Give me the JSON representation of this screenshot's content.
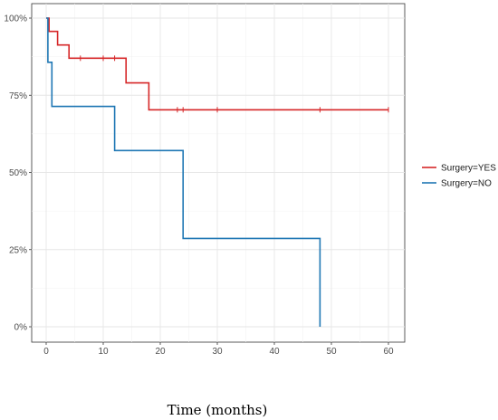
{
  "chart_data": {
    "type": "line",
    "subtype": "kaplan-meier step curves",
    "xlabel": "Time (months)",
    "ylabel": "",
    "title": "",
    "xlim": [
      -2,
      63
    ],
    "ylim": [
      0,
      1
    ],
    "x_ticks": [
      0,
      10,
      20,
      30,
      40,
      50,
      60
    ],
    "x_tick_labels": [
      "0",
      "10",
      "20",
      "30",
      "40",
      "50",
      "60"
    ],
    "y_ticks": [
      0,
      0.25,
      0.5,
      0.75,
      1.0
    ],
    "y_tick_labels": [
      "0%",
      "25%",
      "50%",
      "75%",
      "100%"
    ],
    "grid": true,
    "legend_position": "right",
    "series": [
      {
        "name": "Surgery=YES",
        "color": "#d62728",
        "steps": [
          [
            0,
            1.0
          ],
          [
            0.5,
            0.957
          ],
          [
            2,
            0.913
          ],
          [
            4,
            0.87
          ],
          [
            14,
            0.79
          ],
          [
            18,
            0.703
          ],
          [
            60,
            0.703
          ]
        ],
        "censor_x": [
          6,
          10,
          12,
          23,
          24,
          30,
          48,
          60
        ]
      },
      {
        "name": "Surgery=NO",
        "color": "#1f77b4",
        "steps": [
          [
            0,
            1.0
          ],
          [
            0.3,
            0.857
          ],
          [
            1,
            0.714
          ],
          [
            12,
            0.571
          ],
          [
            24,
            0.286
          ],
          [
            48,
            0.0
          ]
        ],
        "censor_x": []
      }
    ]
  }
}
